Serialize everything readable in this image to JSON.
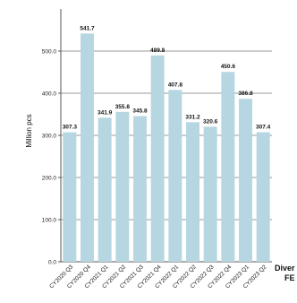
{
  "chart_data": {
    "type": "bar",
    "ylabel": "Million pcs",
    "ylim": [
      0,
      600
    ],
    "yticks": [
      0,
      100,
      200,
      300,
      400,
      500
    ],
    "ytick_labels": [
      "0.0",
      "100.0",
      "200.0",
      "300.0",
      "400.0",
      "500.0"
    ],
    "grid": true,
    "bar_color": "#b6d6e2",
    "grid_color": "#9a9a9a",
    "categories": [
      "CY2020 Q3",
      "CY2020 Q4",
      "CY2021 Q1",
      "CY2021 Q2",
      "CY2021 Q3",
      "CY2021 Q4",
      "CY2022 Q1",
      "CY2022 Q2",
      "CY2022 Q3",
      "CY2022 Q4",
      "CY2023 Q1",
      "CY2023 Q2"
    ],
    "values": [
      307.3,
      541.7,
      341.9,
      355.8,
      345.8,
      489.8,
      407.8,
      331.2,
      320.6,
      450.6,
      386.8,
      307.4
    ],
    "data_labels": [
      "307.3",
      "541.7",
      "341.9",
      "355.8",
      "345.8",
      "489.8",
      "407.8",
      "331.2",
      "320.6",
      "450.6",
      "386.8",
      "307.4"
    ]
  },
  "side_text": [
    "Diver",
    "FE"
  ]
}
